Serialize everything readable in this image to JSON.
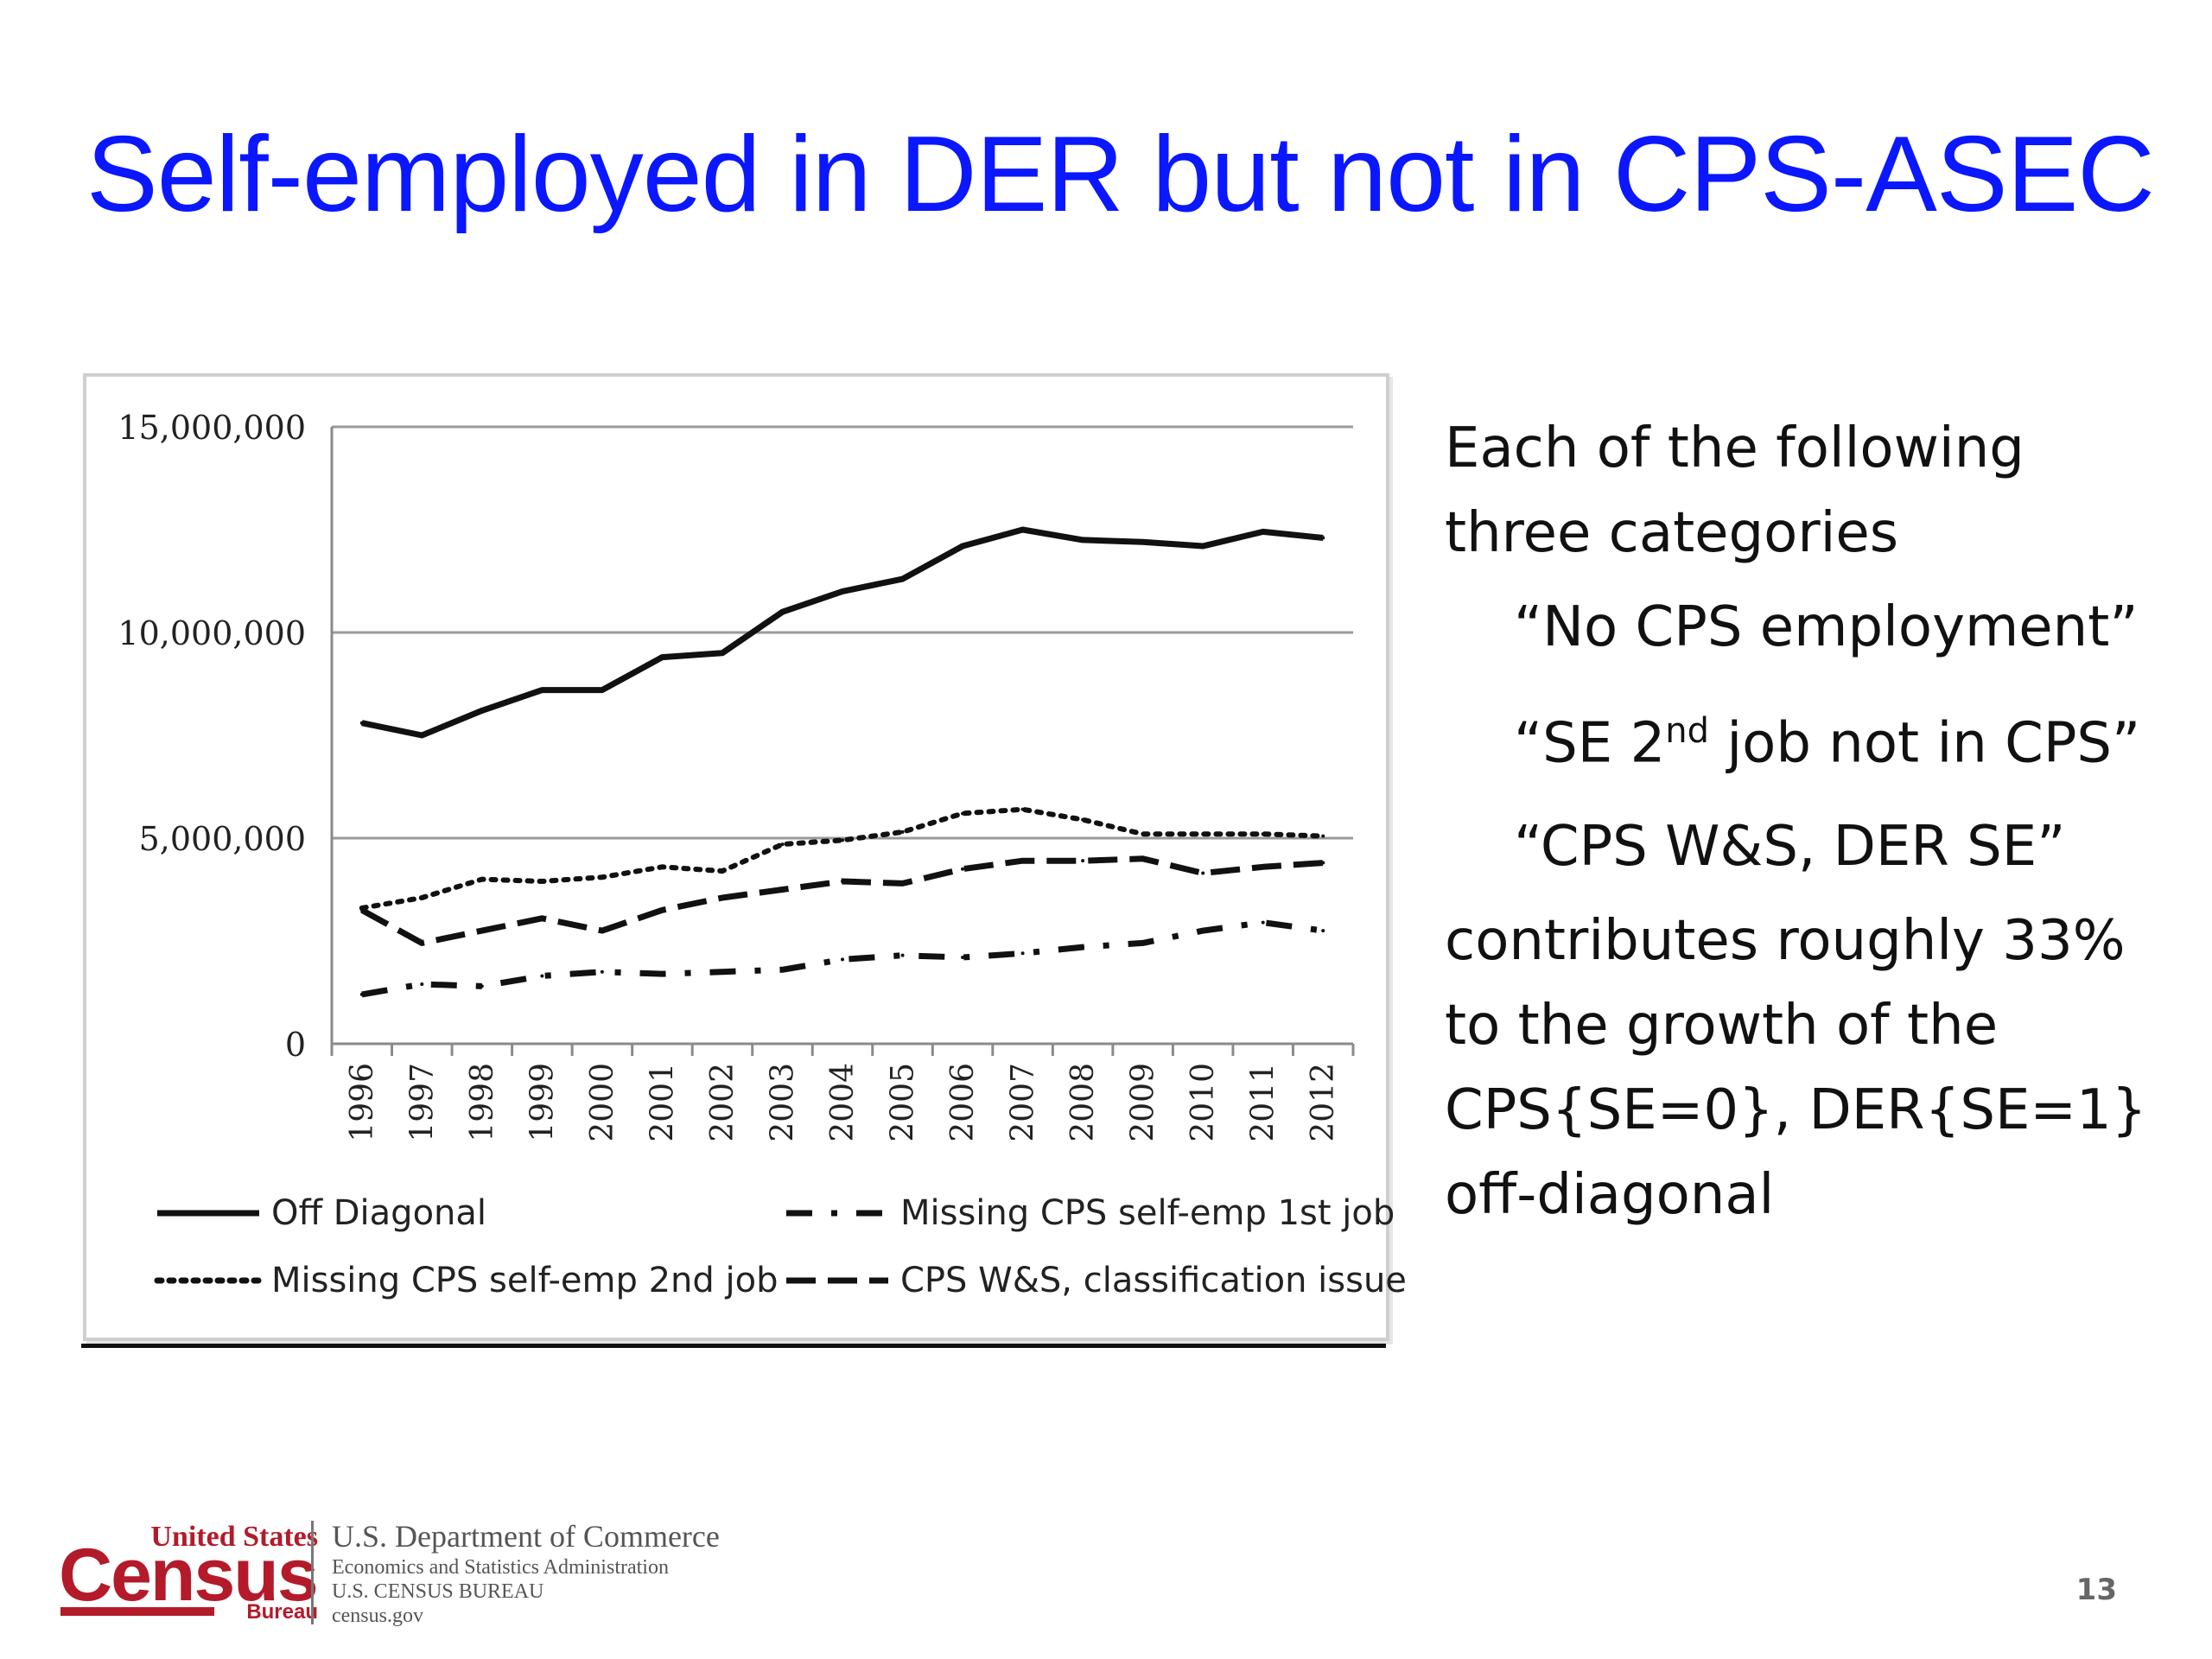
{
  "slide": {
    "title": "Self-employed in DER but not in CPS-ASEC",
    "page_number": "13"
  },
  "bullets": {
    "line1": "Each of the following",
    "line2": "three categories",
    "item1": "“No CPS employment”",
    "item2_a": "“SE 2",
    "item2_sup": "nd",
    "item2_b": " job not in CPS”",
    "item3": "“CPS W&S, DER SE”",
    "line3": "contributes roughly 33%",
    "line4": "to the growth of the",
    "line5": "CPS{SE=0}, DER{SE=1}",
    "line6": "off-diagonal"
  },
  "footer": {
    "logo_top": "United States",
    "logo_main": "Census",
    "logo_bottom": "Bureau",
    "dept": "U.S. Department of Commerce",
    "line2": "Economics and Statistics Administration",
    "line3": "U.S. CENSUS BUREAU",
    "line4": "census.gov"
  },
  "chart_data": {
    "type": "line",
    "x": [
      "1996",
      "1997",
      "1998",
      "1999",
      "2000",
      "2001",
      "2002",
      "2003",
      "2004",
      "2005",
      "2006",
      "2007",
      "2008",
      "2009",
      "2010",
      "2011",
      "2012"
    ],
    "ylim": [
      0,
      15000000
    ],
    "yticks": [
      0,
      5000000,
      10000000,
      15000000
    ],
    "ytick_labels": [
      "0",
      "5,000,000",
      "10,000,000",
      "15,000,000"
    ],
    "grid": true,
    "legend_position": "bottom",
    "series": [
      {
        "name": "Off Diagonal",
        "style": "solid",
        "values": [
          7800000,
          7500000,
          8100000,
          8600000,
          8600000,
          9400000,
          9500000,
          10500000,
          11000000,
          11300000,
          12100000,
          12500000,
          12250000,
          12200000,
          12100000,
          12450000,
          12300000
        ]
      },
      {
        "name": "Missing CPS self-emp 1st job",
        "style": "dashdot",
        "values": [
          1200000,
          1450000,
          1400000,
          1650000,
          1750000,
          1700000,
          1750000,
          1800000,
          2050000,
          2150000,
          2100000,
          2200000,
          2350000,
          2450000,
          2750000,
          2950000,
          2750000
        ]
      },
      {
        "name": "Missing CPS self-emp 2nd job",
        "style": "dotted",
        "values": [
          3300000,
          3550000,
          4000000,
          3950000,
          4050000,
          4300000,
          4200000,
          4850000,
          4950000,
          5150000,
          5600000,
          5700000,
          5450000,
          5100000,
          5100000,
          5100000,
          5050000
        ]
      },
      {
        "name": "CPS W&S, classification issue",
        "style": "dashed",
        "values": [
          3250000,
          2450000,
          2750000,
          3050000,
          2750000,
          3250000,
          3550000,
          3750000,
          3950000,
          3900000,
          4250000,
          4450000,
          4450000,
          4500000,
          4150000,
          4300000,
          4400000
        ]
      }
    ]
  }
}
